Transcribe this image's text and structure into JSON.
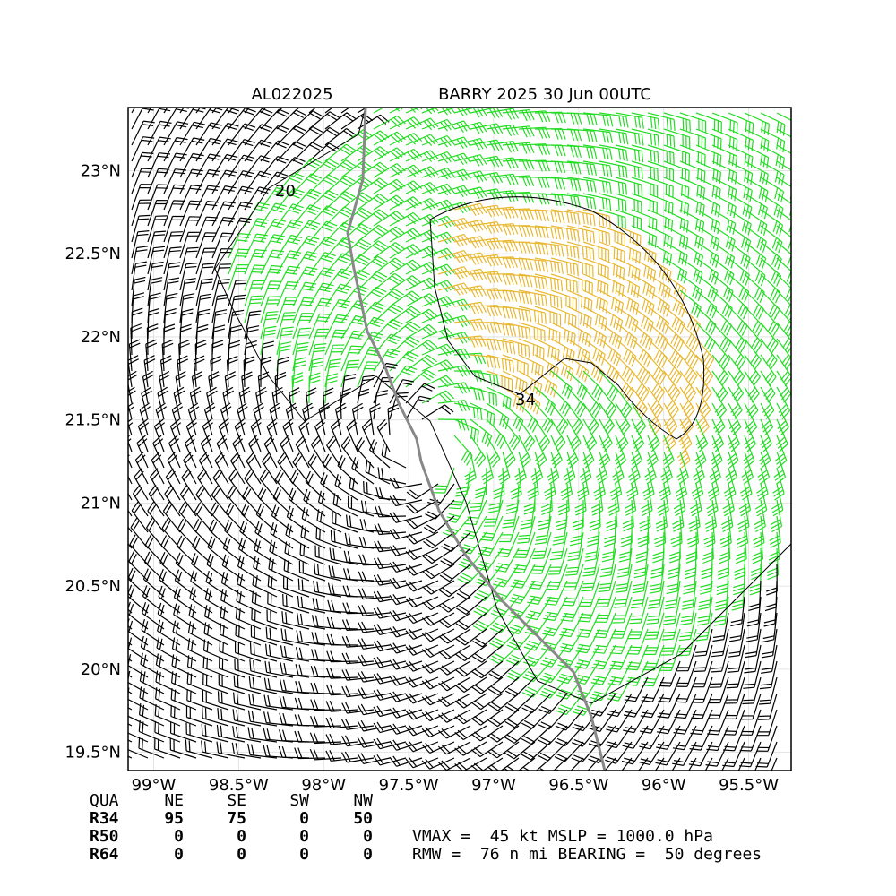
{
  "header": {
    "storm_id": "AL022025",
    "title": "BARRY 2025 30 Jun 00UTC"
  },
  "map": {
    "xlim": [
      -99.15,
      -95.25
    ],
    "ylim": [
      19.39,
      23.38
    ],
    "xticks": [
      {
        "value": -99,
        "label": "99°W"
      },
      {
        "value": -98.5,
        "label": "98.5°W"
      },
      {
        "value": -98,
        "label": "98°W"
      },
      {
        "value": -97.5,
        "label": "97.5°W"
      },
      {
        "value": -97,
        "label": "97°W"
      },
      {
        "value": -96.5,
        "label": "96.5°W"
      },
      {
        "value": -96,
        "label": "96°W"
      },
      {
        "value": -95.5,
        "label": "95.5°W"
      }
    ],
    "yticks": [
      {
        "value": 19.5,
        "label": "19.5°N"
      },
      {
        "value": 20,
        "label": "20°N"
      },
      {
        "value": 20.5,
        "label": "20.5°N"
      },
      {
        "value": 21,
        "label": "21°N"
      },
      {
        "value": 21.5,
        "label": "21.5°N"
      },
      {
        "value": 22,
        "label": "22°N"
      },
      {
        "value": 22.5,
        "label": "22.5°N"
      },
      {
        "value": 23,
        "label": "23°N"
      }
    ],
    "contour_labels": [
      "20",
      "34"
    ]
  },
  "table": {
    "columns": [
      "QUA",
      "NE",
      "SE",
      "SW",
      "NW"
    ],
    "rows": [
      [
        "R34",
        95,
        75,
        0,
        50
      ],
      [
        "R50",
        0,
        0,
        0,
        0
      ],
      [
        "R64",
        0,
        0,
        0,
        0
      ]
    ]
  },
  "summary": [
    "VMAX =  45 kt MSLP = 1000.0 hPa",
    "RMW =  76 n mi BEARING =  50 degrees"
  ]
}
